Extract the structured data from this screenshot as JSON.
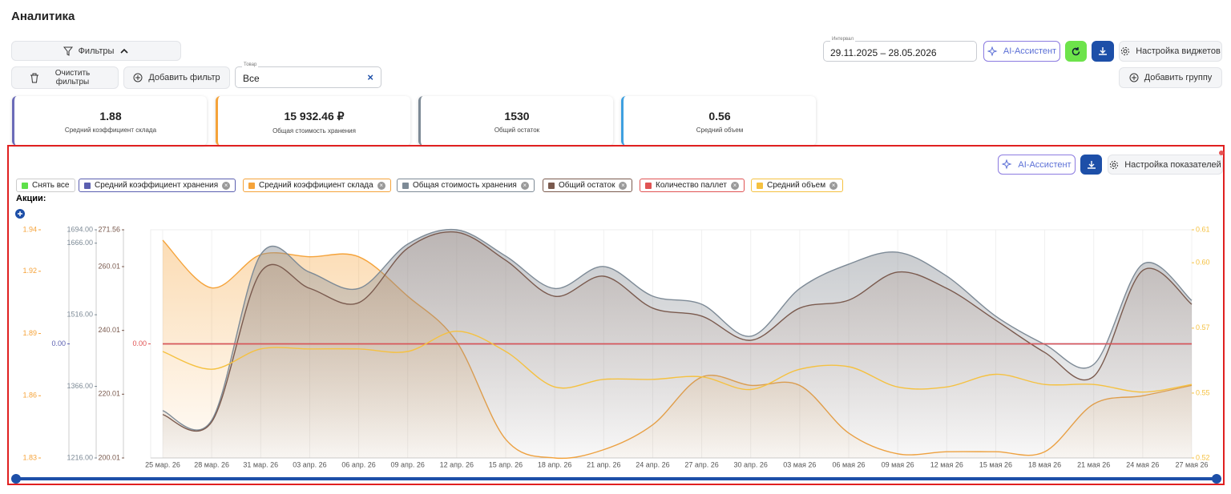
{
  "header": {
    "title": "Аналитика"
  },
  "filters": {
    "toggle": "Фильтры",
    "clear": "Очистить фильтры",
    "add": "Добавить фильтр",
    "product": {
      "label": "Товар",
      "value": "Все"
    }
  },
  "controls": {
    "interval": {
      "label": "Интервал",
      "value": "29.11.2025 – 28.05.2026"
    },
    "ai": "AI-Ассистент",
    "widgets": "Настройка виджетов",
    "add_group": "Добавить группу"
  },
  "kpis": [
    {
      "value": "1.88",
      "label": "Средний коэффициент склада",
      "color": "#6b6bb8"
    },
    {
      "value": "15 932.46 ₽",
      "label": "Общая стоимость хранения",
      "color": "#f5a33a"
    },
    {
      "value": "1530",
      "label": "Общий остаток",
      "color": "#7d8a96"
    },
    {
      "value": "0.56",
      "label": "Средний объем",
      "color": "#3ea0e0"
    }
  ],
  "chart_panel": {
    "ai": "AI-Ассистент",
    "settings": "Настройка показателей",
    "clear_all": "Снять все",
    "promo": "Акции:"
  },
  "chart_data": {
    "type": "line",
    "grid": true,
    "categories": [
      "25 мар. 26",
      "28 мар. 26",
      "31 мар. 26",
      "03 апр. 26",
      "06 апр. 26",
      "09 апр. 26",
      "12 апр. 26",
      "15 апр. 26",
      "18 апр. 26",
      "21 апр. 26",
      "24 апр. 26",
      "27 апр. 26",
      "30 апр. 26",
      "03 мая 26",
      "06 мая 26",
      "09 мая 26",
      "12 мая 26",
      "15 мая 26",
      "18 мая 26",
      "21 мая 26",
      "24 мая 26",
      "27 мая 26"
    ],
    "series": [
      {
        "name": "Средний коэффициент хранения",
        "color": "#5b5fb0",
        "ylim": [
          -1,
          1
        ],
        "yticks": [
          {
            "value": 0,
            "label": "0.00"
          }
        ],
        "values": [
          0,
          0,
          0,
          0,
          0,
          0,
          0,
          0,
          0,
          0,
          0,
          0,
          0,
          0,
          0,
          0,
          0,
          0,
          0,
          0,
          0,
          0
        ]
      },
      {
        "name": "Средний коэффициент склада",
        "color": "#f5a33a",
        "area": true,
        "ylim": [
          1.83,
          1.94
        ],
        "yticks": [
          1.83,
          1.86,
          1.89,
          1.92,
          1.94
        ],
        "values": [
          1.935,
          1.912,
          1.928,
          1.927,
          1.927,
          1.908,
          1.886,
          1.839,
          1.83,
          1.834,
          1.846,
          1.869,
          1.865,
          1.865,
          1.842,
          1.832,
          1.833,
          1.833,
          1.833,
          1.856,
          1.86,
          1.865
        ]
      },
      {
        "name": "Общая стоимость хранения",
        "color": "#7d8a96",
        "area": true,
        "ylim": [
          1216,
          1694
        ],
        "yticks": [
          {
            "value": 1216,
            "label": "1216.00"
          },
          {
            "value": 1366,
            "label": "1366.00"
          },
          {
            "value": 1516,
            "label": "1516.00"
          },
          {
            "value": 1666,
            "label": "1666.00"
          },
          {
            "value": 1694,
            "label": "1694.00"
          }
        ],
        "values": [
          1315,
          1295,
          1642,
          1605,
          1571,
          1664,
          1694,
          1639,
          1571,
          1617,
          1555,
          1538,
          1471,
          1571,
          1622,
          1647,
          1597,
          1513,
          1454,
          1412,
          1622,
          1546
        ]
      },
      {
        "name": "Общий остаток",
        "color": "#7a5a4e",
        "area": true,
        "ylim": [
          200.01,
          271.56
        ],
        "yticks": [
          200.01,
          220.01,
          240.01,
          260.01,
          271.56
        ],
        "values": [
          213.6,
          211.3,
          258.3,
          253.2,
          248.7,
          265.8,
          270.8,
          262.0,
          250.7,
          257.0,
          247.0,
          244.5,
          236.9,
          247.0,
          249.5,
          258.3,
          253.2,
          243.2,
          233.1,
          225.6,
          258.8,
          248.2
        ]
      },
      {
        "name": "Количество паллет",
        "color": "#e05353",
        "ylim": [
          -1,
          1
        ],
        "yticks": [
          {
            "value": 0,
            "label": "0.00"
          }
        ],
        "values": [
          0,
          0,
          0,
          0,
          0,
          0,
          0,
          0,
          0,
          0,
          0,
          0,
          0,
          0,
          0,
          0,
          0,
          0,
          0,
          0,
          0,
          0
        ]
      },
      {
        "name": "Средний объем",
        "color": "#f5c140",
        "axis": "y2",
        "ylim": [
          0.52,
          0.61
        ],
        "yticks": [
          0.52,
          {
            "value": 0.5456,
            "label": "0.55"
          },
          {
            "value": 0.5712,
            "label": "0.57"
          },
          {
            "value": 0.597,
            "label": "0.60"
          },
          0.61
        ],
        "values": [
          0.562,
          0.555,
          0.563,
          0.563,
          0.563,
          0.562,
          0.57,
          0.562,
          0.548,
          0.551,
          0.551,
          0.552,
          0.547,
          0.555,
          0.556,
          0.548,
          0.548,
          0.553,
          0.549,
          0.549,
          0.546,
          0.549
        ]
      }
    ]
  }
}
